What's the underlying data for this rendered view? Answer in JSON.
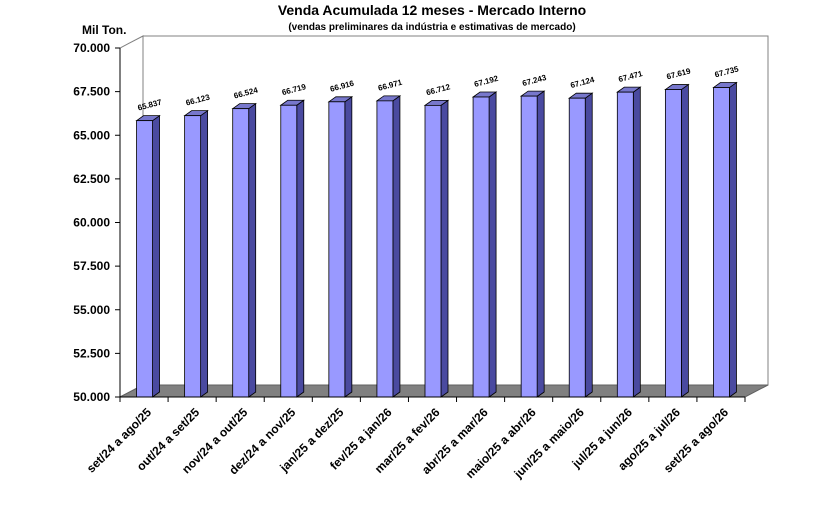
{
  "chart_data": {
    "type": "bar",
    "title": "Venda Acumulada 12 meses -  Mercado Interno",
    "subtitle": "(vendas preliminares da indústria e estimativas de mercado)",
    "ylabel": "Mil Ton.",
    "xlabel": "",
    "ylim": [
      50000,
      70000
    ],
    "yticks": [
      "50.000",
      "52.500",
      "55.000",
      "57.500",
      "60.000",
      "62.500",
      "65.000",
      "67.500",
      "70.000"
    ],
    "ytick_values": [
      50000,
      52500,
      55000,
      57500,
      60000,
      62500,
      65000,
      67500,
      70000
    ],
    "categories": [
      "set/24 a ago/25",
      "out/24 a set/25",
      "nov/24 a out/25",
      "dez/24 a nov/25",
      "jan/25 a dez/25",
      "fev/25 a jan/26",
      "mar/25 a fev/26",
      "abr/25 a mar/26",
      "maio/25 a abr/26",
      "jun/25 a maio/26",
      "jul/25 a jun/26",
      "ago/25 a jul/26",
      "set/25 a ago/26"
    ],
    "values": [
      65837,
      66123,
      66524,
      66719,
      66916,
      66971,
      66712,
      67192,
      67243,
      67124,
      67471,
      67619,
      67735
    ],
    "data_labels": [
      "65.837",
      "66.123",
      "66.524",
      "66.719",
      "66.916",
      "66.971",
      "66.712",
      "67.192",
      "67.243",
      "67.124",
      "67.471",
      "67.619",
      "67.735"
    ],
    "grid": false,
    "legend": "none",
    "colors": {
      "bar_front": "#9999ff",
      "bar_side": "#4a4aa0",
      "bar_top": "#7777cc",
      "floor": "#808080",
      "wall": "#ffffff",
      "wall_border": "#808080"
    }
  }
}
